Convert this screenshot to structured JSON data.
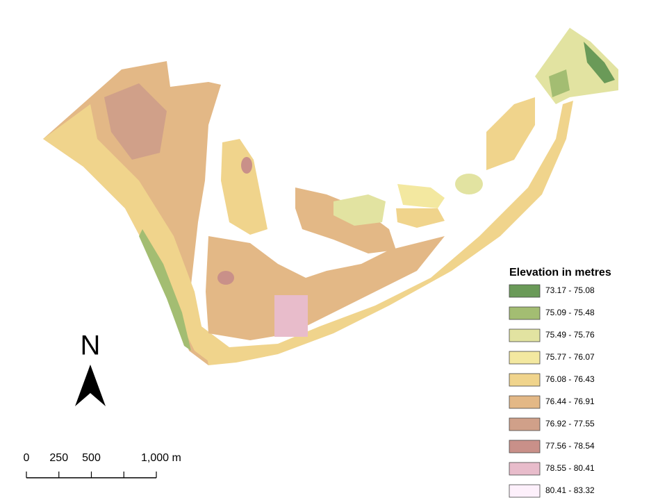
{
  "legend": {
    "title": "Elevation in metres",
    "items": [
      {
        "label": "73.17 - 75.08",
        "color": "#6a9a58"
      },
      {
        "label": "75.09 - 75.48",
        "color": "#a3bd72"
      },
      {
        "label": "75.49 - 75.76",
        "color": "#e2e3a1"
      },
      {
        "label": "75.77 - 76.07",
        "color": "#f3e8a0"
      },
      {
        "label": "76.08 - 76.43",
        "color": "#f0d48c"
      },
      {
        "label": "76.44 - 76.91",
        "color": "#e3b886"
      },
      {
        "label": "76.92 - 77.55",
        "color": "#d0a089"
      },
      {
        "label": "77.56 - 78.54",
        "color": "#c99089"
      },
      {
        "label": "78.55 - 80.41",
        "color": "#e8bccb"
      },
      {
        "label": "80.41 - 83.32",
        "color": "#fdf0fb"
      }
    ]
  },
  "north_arrow": {
    "label": "N"
  },
  "scale_bar": {
    "ticks": [
      0,
      250,
      500,
      750,
      1000
    ],
    "labels": [
      "0",
      "250",
      "500",
      null,
      "1,000 m"
    ]
  }
}
